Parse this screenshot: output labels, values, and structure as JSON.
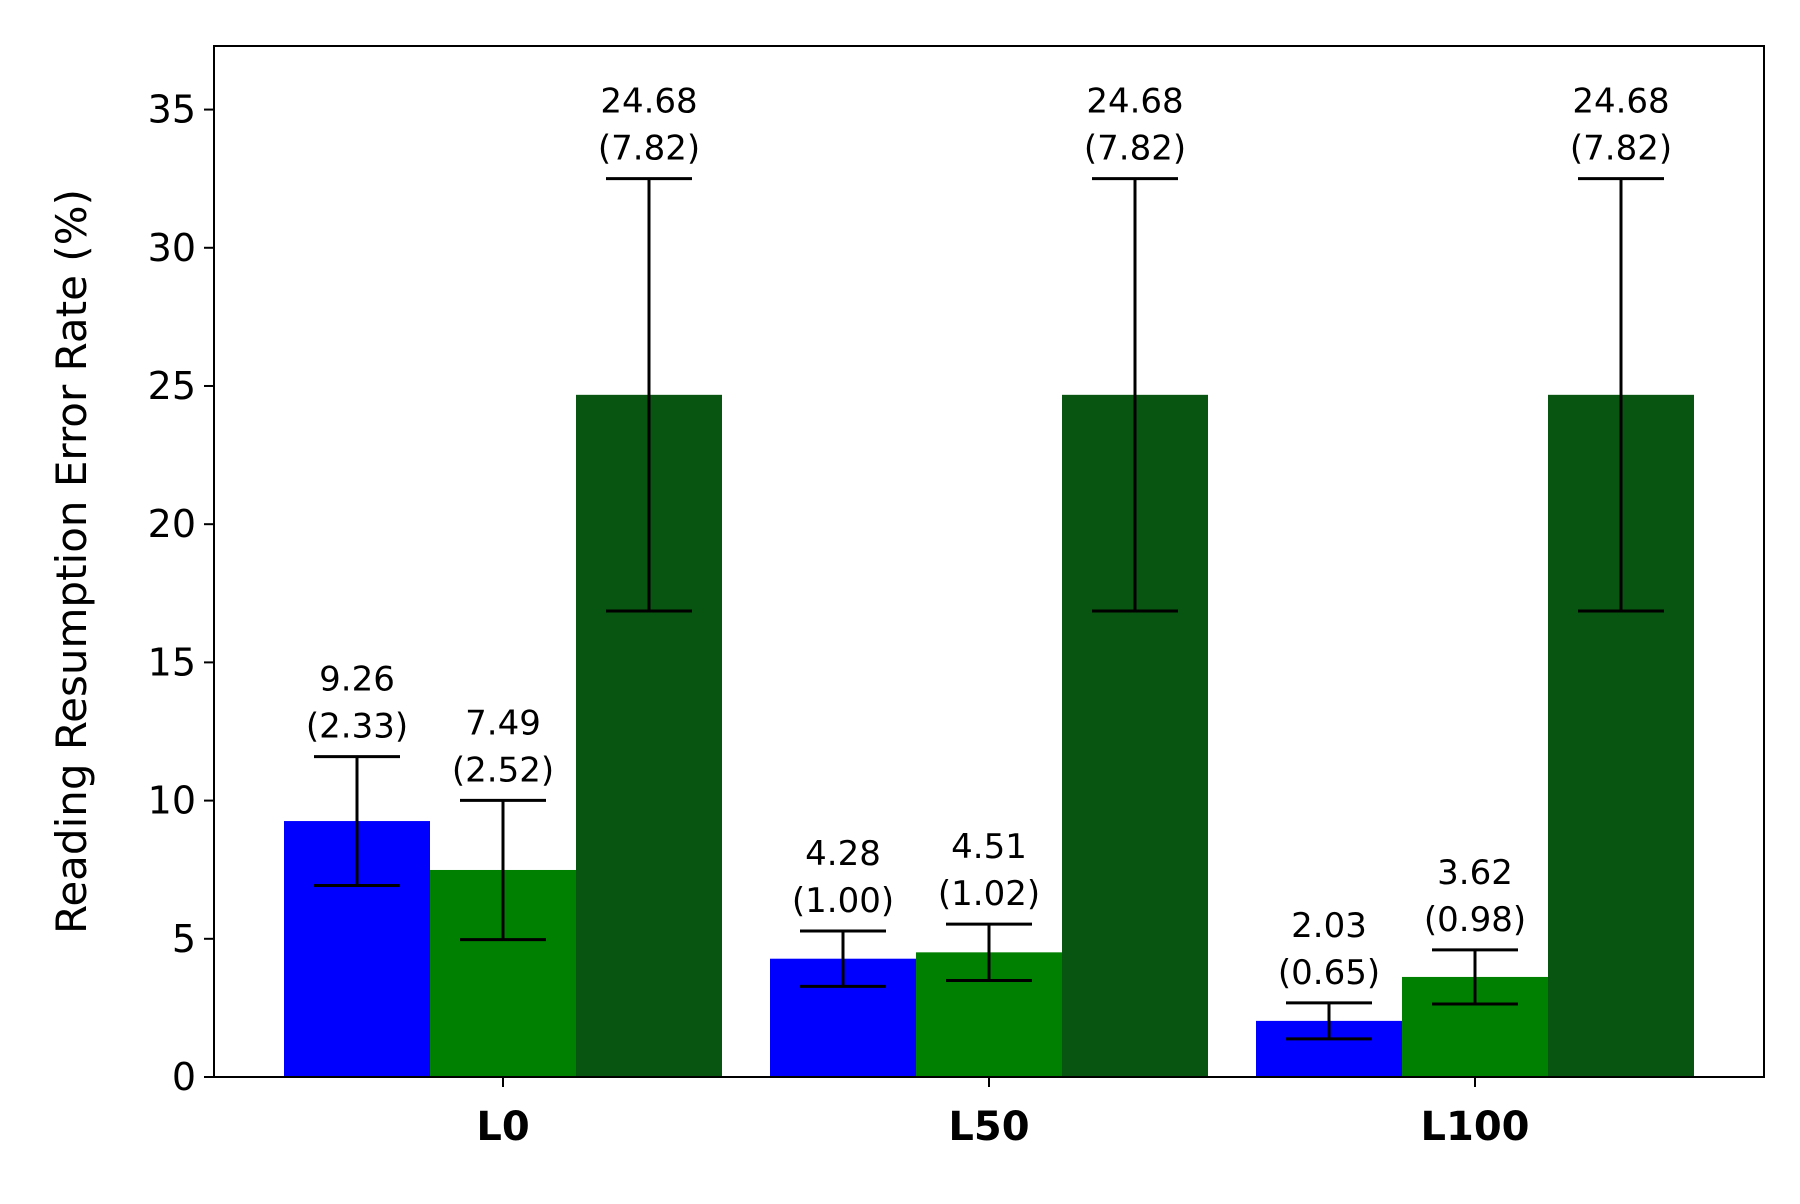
{
  "chart_data": {
    "type": "bar",
    "title": "",
    "xlabel": "",
    "ylabel": "Reading Resumption Error Rate (%)",
    "ylim": [
      0,
      37.3
    ],
    "yticks": [
      0,
      5,
      10,
      15,
      20,
      25,
      30,
      35
    ],
    "ytick_labels": [
      "0",
      "5",
      "10",
      "15",
      "20",
      "25",
      "30",
      "35"
    ],
    "categories": [
      "L0",
      "L50",
      "L100"
    ],
    "grid": false,
    "legend": "none",
    "series": [
      {
        "color": "#0000ff",
        "values": [
          9.26,
          4.28,
          2.03
        ],
        "errors": [
          2.33,
          1.0,
          0.65
        ],
        "labels": [
          "9.26\n(2.33)",
          "4.28\n(1.00)",
          "2.03\n(0.65)"
        ]
      },
      {
        "color": "#008000",
        "values": [
          7.49,
          4.51,
          3.62
        ],
        "errors": [
          2.52,
          1.02,
          0.98
        ],
        "labels": [
          "7.49\n(2.52)",
          "4.51\n(1.02)",
          "3.62\n(0.98)"
        ]
      },
      {
        "color": "#085511",
        "values": [
          24.68,
          24.68,
          24.68
        ],
        "errors": [
          7.82,
          7.82,
          7.82
        ],
        "labels": [
          "24.68\n(7.82)",
          "24.68\n(7.82)",
          "24.68\n(7.82)"
        ]
      }
    ]
  }
}
